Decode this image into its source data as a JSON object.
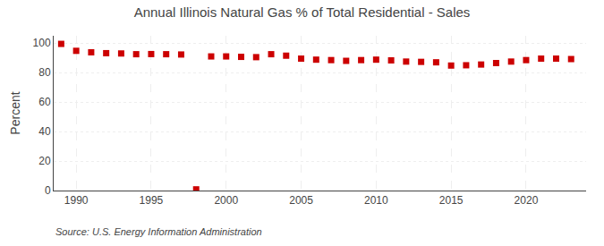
{
  "chart_data": {
    "type": "scatter",
    "title": "Annual Illinois Natural Gas % of Total Residential - Sales",
    "y_label": "Percent",
    "annotations": [
      "Source: U.S. Energy Information Administration"
    ],
    "x": [
      1989,
      1990,
      1991,
      1992,
      1993,
      1994,
      1995,
      1996,
      1997,
      1998,
      1999,
      2000,
      2001,
      2002,
      2003,
      2004,
      2005,
      2006,
      2007,
      2008,
      2009,
      2010,
      2011,
      2012,
      2013,
      2014,
      2015,
      2016,
      2017,
      2018,
      2019,
      2020,
      2021,
      2022,
      2023
    ],
    "values": [
      99.5,
      94.8,
      93.8,
      93.2,
      93.0,
      92.5,
      92.6,
      92.5,
      92.3,
      0.8,
      91.0,
      91.0,
      90.7,
      90.5,
      92.5,
      91.5,
      89.5,
      88.8,
      88.5,
      88.0,
      88.5,
      88.8,
      88.3,
      87.5,
      87.3,
      87.0,
      84.8,
      85.0,
      85.5,
      86.5,
      87.5,
      88.5,
      89.5,
      89.5,
      89.2
    ],
    "color": "#cc0000",
    "marker": "square",
    "xlim": [
      1988.5,
      2024
    ],
    "xticks": [
      1990,
      1995,
      2000,
      2005,
      2010,
      2015,
      2020
    ],
    "ylim": [
      0,
      105
    ],
    "yticks": [
      0,
      20,
      40,
      60,
      80,
      100
    ],
    "grid": true
  }
}
